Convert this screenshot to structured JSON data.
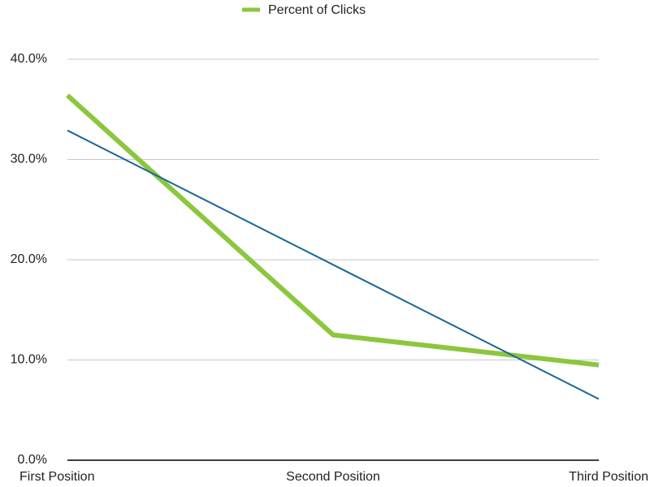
{
  "chart_data": {
    "type": "line",
    "categories": [
      "First Position",
      "Second Position",
      "Third Position"
    ],
    "series": [
      {
        "name": "Percent of Clicks",
        "color": "#8cc63f",
        "values": [
          36.4,
          12.5,
          9.5
        ]
      }
    ],
    "trendline": {
      "color": "#1a6699",
      "values": [
        32.9,
        19.5,
        6.1
      ]
    },
    "ylim": [
      0,
      40
    ],
    "yticks": [
      {
        "value": 0,
        "label": "0.0%"
      },
      {
        "value": 10,
        "label": "10.0%"
      },
      {
        "value": 20,
        "label": "20.0%"
      },
      {
        "value": 30,
        "label": "30.0%"
      },
      {
        "value": 40,
        "label": "40.0%"
      }
    ],
    "grid": true,
    "legend": "top"
  }
}
